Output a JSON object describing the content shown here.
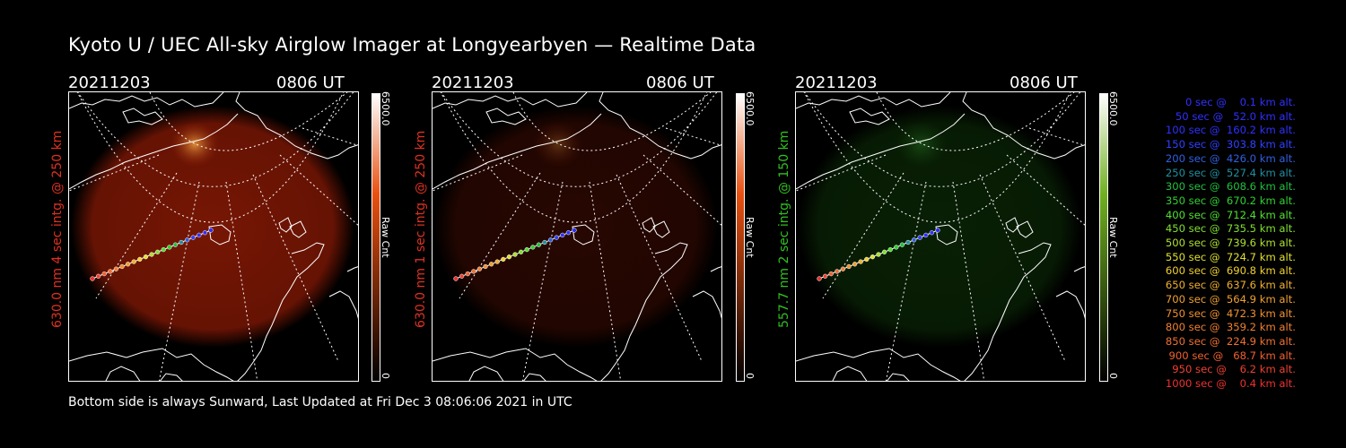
{
  "title": "Kyoto U / UEC All-sky Airglow Imager at Longyearbyen — Realtime Data",
  "footer": "Bottom side is always Sunward, Last Updated at Fri Dec  3 08:06:06 2021 in UTC",
  "colors": {
    "red_label": "#e03020",
    "green_label": "#30c020"
  },
  "panels": [
    {
      "date": "20211203",
      "time": "0806 UT",
      "side_label": "630.0 nm 4 sec intg. @ 250 km",
      "cbar_max": "6500.0",
      "cbar_min": "0",
      "cbar_unit": "Raw Cnt",
      "image_color": "#8c1a05",
      "image_intensity": 0.85,
      "bar_top": "#ffffff",
      "bar_mid": "#e85010",
      "bar_bottom": "#000000"
    },
    {
      "date": "20211203",
      "time": "0806 UT",
      "side_label": "630.0 nm 1 sec intg. @ 250 km",
      "cbar_max": "6500.0",
      "cbar_min": "0",
      "cbar_unit": "Raw Cnt",
      "image_color": "#8c1a05",
      "image_intensity": 0.28,
      "bar_top": "#ffffff",
      "bar_mid": "#e85010",
      "bar_bottom": "#000000"
    },
    {
      "date": "20211203",
      "time": "0806 UT",
      "side_label": "557.7 nm 2 sec intg. @ 150 km",
      "cbar_max": "6500.0",
      "cbar_min": "0",
      "cbar_unit": "Raw Cnt",
      "image_color": "#1c6a10",
      "image_intensity": 0.3,
      "bar_top": "#ffffff",
      "bar_mid": "#70b020",
      "bar_bottom": "#000000"
    }
  ],
  "legend": [
    {
      "text": "   0 sec @    0.1 km alt.",
      "color": "#3030ff"
    },
    {
      "text": "  50 sec @   52.0 km alt.",
      "color": "#3030ff"
    },
    {
      "text": " 100 sec @  160.2 km alt.",
      "color": "#3030ff"
    },
    {
      "text": " 150 sec @  303.8 km alt.",
      "color": "#3040ff"
    },
    {
      "text": " 200 sec @  426.0 km alt.",
      "color": "#3060e0"
    },
    {
      "text": " 250 sec @  527.4 km alt.",
      "color": "#2090a0"
    },
    {
      "text": " 300 sec @  608.6 km alt.",
      "color": "#20c040"
    },
    {
      "text": " 350 sec @  670.2 km alt.",
      "color": "#30d030"
    },
    {
      "text": " 400 sec @  712.4 km alt.",
      "color": "#50e030"
    },
    {
      "text": " 450 sec @  735.5 km alt.",
      "color": "#80e030"
    },
    {
      "text": " 500 sec @  739.6 km alt.",
      "color": "#b0e030"
    },
    {
      "text": " 550 sec @  724.7 km alt.",
      "color": "#e0e030"
    },
    {
      "text": " 600 sec @  690.8 km alt.",
      "color": "#f0d030"
    },
    {
      "text": " 650 sec @  637.6 km alt.",
      "color": "#f0b030"
    },
    {
      "text": " 700 sec @  564.9 km alt.",
      "color": "#f0a030"
    },
    {
      "text": " 750 sec @  472.3 km alt.",
      "color": "#f09030"
    },
    {
      "text": " 800 sec @  359.2 km alt.",
      "color": "#f08030"
    },
    {
      "text": " 850 sec @  224.9 km alt.",
      "color": "#f07030"
    },
    {
      "text": " 900 sec @   68.7 km alt.",
      "color": "#f06030"
    },
    {
      "text": " 950 sec @    6.2 km alt.",
      "color": "#f04030"
    },
    {
      "text": "1000 sec @    0.4 km alt.",
      "color": "#f03030"
    }
  ]
}
